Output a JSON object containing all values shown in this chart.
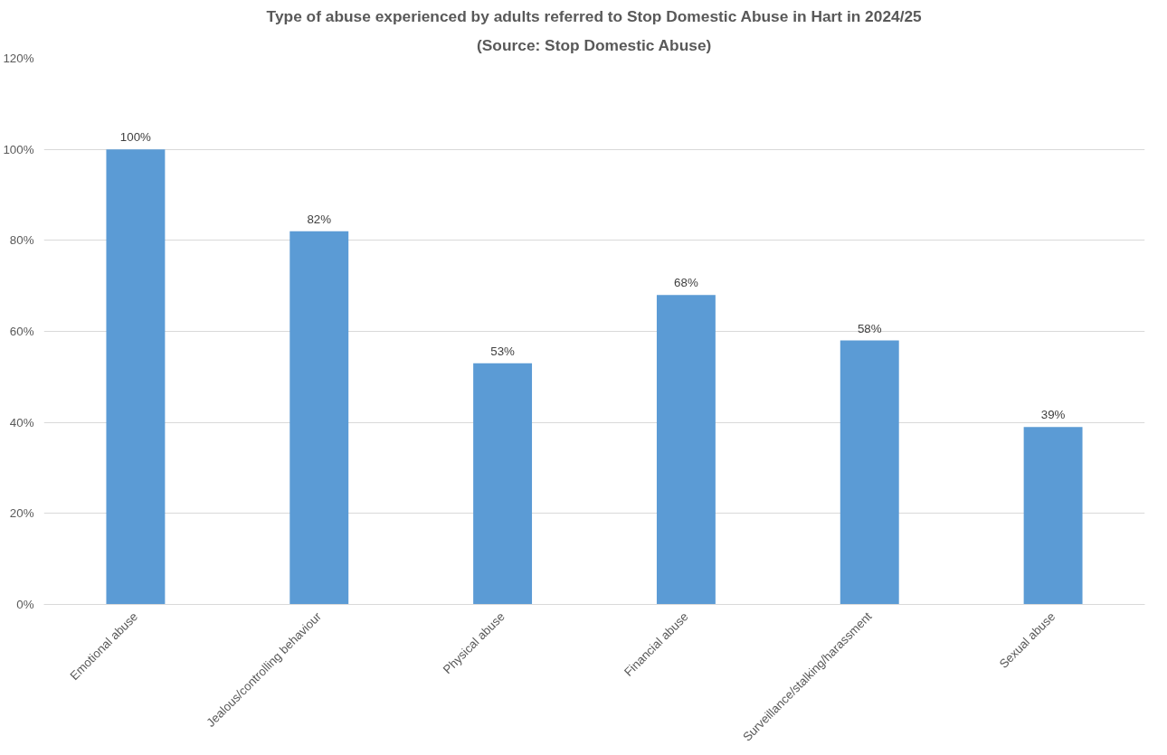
{
  "chart_data": {
    "type": "bar",
    "title": "Type of abuse experienced by adults referred to Stop Domestic Abuse in Hart in 2024/25",
    "annotations": [
      "(Source: Stop Domestic Abuse)"
    ],
    "categories": [
      "Emotional abuse",
      "Jealous/controlling behaviour",
      "Physical abuse",
      "Financial abuse",
      "Surveillance/stalking/harassment",
      "Sexual abuse"
    ],
    "values": [
      100,
      82,
      53,
      68,
      58,
      39
    ],
    "value_labels": [
      "100%",
      "82%",
      "53%",
      "68%",
      "58%",
      "39%"
    ],
    "color": "#5b9bd5",
    "ylim": [
      0,
      120
    ],
    "yticks": [
      {
        "value": 0,
        "label": "0%"
      },
      {
        "value": 20,
        "label": "20%"
      },
      {
        "value": 40,
        "label": "40%"
      },
      {
        "value": 60,
        "label": "60%"
      },
      {
        "value": 80,
        "label": "80%"
      },
      {
        "value": 100,
        "label": "100%"
      },
      {
        "value": 120,
        "label": "120%"
      }
    ],
    "grid": "y"
  }
}
